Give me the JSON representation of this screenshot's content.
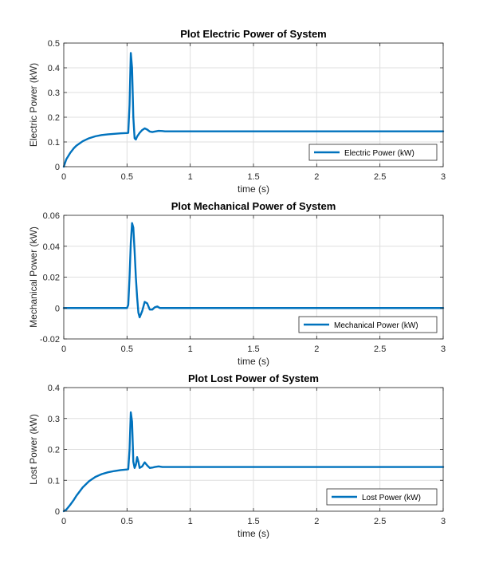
{
  "chart_data": [
    {
      "type": "line",
      "title": "Plot Electric Power of System",
      "xlabel": "time (s)",
      "ylabel": "Electric Power (kW)",
      "xlim": [
        0,
        3
      ],
      "ylim": [
        0,
        0.5
      ],
      "xticks": [
        0,
        0.5,
        1,
        1.5,
        2,
        2.5,
        3
      ],
      "xtick_labels": [
        "0",
        "0.5",
        "1",
        "1.5",
        "2",
        "2.5",
        "3"
      ],
      "yticks": [
        0,
        0.1,
        0.2,
        0.3,
        0.4,
        0.5
      ],
      "ytick_labels": [
        "0",
        "0.1",
        "0.2",
        "0.3",
        "0.4",
        "0.5"
      ],
      "grid": true,
      "legend_position": "bottom-right",
      "color": "#0072BD",
      "series": [
        {
          "name": "Electric Power (kW)",
          "x": [
            0,
            0.02,
            0.05,
            0.08,
            0.1,
            0.15,
            0.2,
            0.25,
            0.3,
            0.35,
            0.4,
            0.45,
            0.5,
            0.51,
            0.52,
            0.53,
            0.54,
            0.55,
            0.56,
            0.57,
            0.58,
            0.6,
            0.62,
            0.64,
            0.66,
            0.68,
            0.7,
            0.72,
            0.75,
            0.78,
            0.8,
            0.85,
            0.9,
            1,
            1.5,
            2,
            2.5,
            3
          ],
          "y": [
            0,
            0.03,
            0.055,
            0.075,
            0.085,
            0.103,
            0.115,
            0.123,
            0.128,
            0.131,
            0.133,
            0.135,
            0.136,
            0.137,
            0.25,
            0.46,
            0.4,
            0.2,
            0.115,
            0.11,
            0.122,
            0.137,
            0.148,
            0.155,
            0.15,
            0.142,
            0.14,
            0.142,
            0.145,
            0.144,
            0.143,
            0.143,
            0.143,
            0.143,
            0.143,
            0.143,
            0.143,
            0.143
          ]
        }
      ]
    },
    {
      "type": "line",
      "title": "Plot Mechanical Power of System",
      "xlabel": "time (s)",
      "ylabel": "Mechanical Power (kW)",
      "xlim": [
        0,
        3
      ],
      "ylim": [
        -0.02,
        0.06
      ],
      "xticks": [
        0,
        0.5,
        1,
        1.5,
        2,
        2.5,
        3
      ],
      "xtick_labels": [
        "0",
        "0.5",
        "1",
        "1.5",
        "2",
        "2.5",
        "3"
      ],
      "yticks": [
        -0.02,
        0,
        0.02,
        0.04,
        0.06
      ],
      "ytick_labels": [
        "-0.02",
        "0",
        "0.02",
        "0.04",
        "0.06"
      ],
      "grid": true,
      "legend_position": "bottom-right",
      "color": "#0072BD",
      "series": [
        {
          "name": "Mechanical Power (kW)",
          "x": [
            0,
            0.5,
            0.51,
            0.52,
            0.53,
            0.54,
            0.55,
            0.56,
            0.57,
            0.58,
            0.59,
            0.6,
            0.62,
            0.64,
            0.66,
            0.68,
            0.7,
            0.72,
            0.74,
            0.76,
            0.8,
            0.9,
            1,
            1.5,
            2,
            2.5,
            3
          ],
          "y": [
            0,
            0,
            0.002,
            0.02,
            0.042,
            0.055,
            0.052,
            0.037,
            0.02,
            0.007,
            -0.003,
            -0.006,
            -0.002,
            0.004,
            0.003,
            -0.001,
            -0.001,
            0.0005,
            0.001,
            0,
            0,
            0,
            0,
            0,
            0,
            0,
            0
          ]
        }
      ]
    },
    {
      "type": "line",
      "title": "Plot Lost Power of System",
      "xlabel": "time (s)",
      "ylabel": "Lost Power (kW)",
      "xlim": [
        0,
        3
      ],
      "ylim": [
        0,
        0.4
      ],
      "xticks": [
        0,
        0.5,
        1,
        1.5,
        2,
        2.5,
        3
      ],
      "xtick_labels": [
        "0",
        "0.5",
        "1",
        "1.5",
        "2",
        "2.5",
        "3"
      ],
      "yticks": [
        0,
        0.1,
        0.2,
        0.3,
        0.4
      ],
      "ytick_labels": [
        "0",
        "0.1",
        "0.2",
        "0.3",
        "0.4"
      ],
      "grid": true,
      "legend_position": "bottom-right",
      "color": "#0072BD",
      "series": [
        {
          "name": "Lost Power (kW)",
          "x": [
            0,
            0.02,
            0.05,
            0.08,
            0.1,
            0.15,
            0.2,
            0.25,
            0.3,
            0.35,
            0.4,
            0.45,
            0.5,
            0.51,
            0.52,
            0.53,
            0.54,
            0.55,
            0.56,
            0.57,
            0.58,
            0.59,
            0.6,
            0.62,
            0.64,
            0.66,
            0.68,
            0.7,
            0.72,
            0.75,
            0.78,
            0.8,
            0.9,
            1,
            1.5,
            2,
            2.5,
            3
          ],
          "y": [
            0,
            0.005,
            0.02,
            0.037,
            0.05,
            0.077,
            0.097,
            0.111,
            0.12,
            0.126,
            0.13,
            0.133,
            0.135,
            0.136,
            0.2,
            0.32,
            0.29,
            0.16,
            0.14,
            0.15,
            0.175,
            0.16,
            0.14,
            0.145,
            0.158,
            0.148,
            0.14,
            0.141,
            0.143,
            0.145,
            0.143,
            0.143,
            0.143,
            0.143,
            0.143,
            0.143,
            0.143,
            0.143
          ]
        }
      ]
    }
  ]
}
